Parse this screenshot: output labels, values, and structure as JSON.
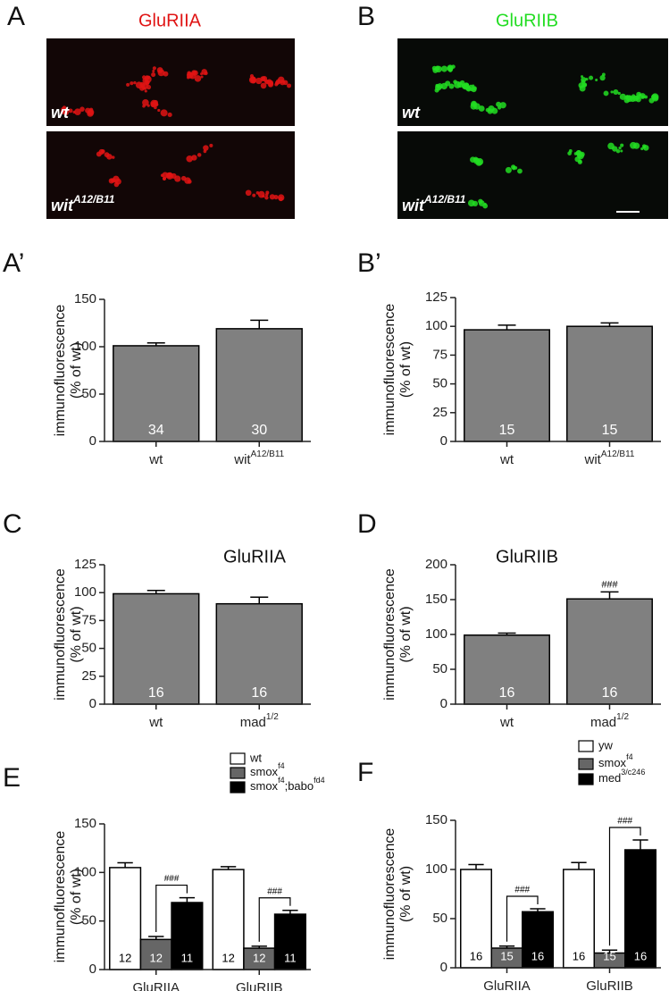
{
  "panels": [
    {
      "letter": "A",
      "title": "GluRIIA",
      "color": "#e01414",
      "rows": [
        "wt",
        [
          "wit",
          "A12/B11"
        ]
      ]
    },
    {
      "letter": "B",
      "title": "GluRIIB",
      "color": "#22dd22",
      "rows": [
        "wt",
        [
          "wit",
          "A12/B11"
        ]
      ]
    }
  ],
  "chart_data": [
    {
      "type": "bar",
      "letter": "A’",
      "ylabel": [
        "immunofluorescence",
        "(% of wt)"
      ],
      "categories": [
        "wt",
        [
          "wit",
          "A12/B11"
        ]
      ],
      "values": [
        101,
        119
      ],
      "errors": [
        3,
        9
      ],
      "n": [
        34,
        30
      ],
      "color": "#808080",
      "ylim": [
        0,
        150
      ],
      "yticks": [
        0,
        50,
        100,
        150
      ]
    },
    {
      "type": "bar",
      "letter": "B’",
      "ylabel": [
        "immunofluorescence",
        "(% of wt)"
      ],
      "categories": [
        "wt",
        [
          "wit",
          "A12/B11"
        ]
      ],
      "values": [
        97,
        100
      ],
      "errors": [
        4,
        3
      ],
      "n": [
        15,
        15
      ],
      "color": "#808080",
      "ylim": [
        0,
        125
      ],
      "yticks": [
        0,
        25,
        50,
        75,
        100,
        125
      ]
    },
    {
      "type": "bar",
      "letter": "C",
      "title": "GluRIIA",
      "ylabel": [
        "immunofluorescence",
        "(% of wt)"
      ],
      "categories": [
        "wt",
        [
          "mad",
          "1/2"
        ]
      ],
      "values": [
        99,
        90
      ],
      "errors": [
        3,
        6
      ],
      "n": [
        16,
        16
      ],
      "color": "#808080",
      "ylim": [
        0,
        125
      ],
      "yticks": [
        0,
        25,
        50,
        75,
        100,
        125
      ]
    },
    {
      "type": "bar",
      "letter": "D",
      "title": "GluRIIB",
      "ylabel": [
        "immunofluorescence",
        "(% of wt)"
      ],
      "categories": [
        "wt",
        [
          "mad",
          "1/2"
        ]
      ],
      "values": [
        99,
        151
      ],
      "errors": [
        3,
        10
      ],
      "n": [
        16,
        16
      ],
      "significance": [
        null,
        "###"
      ],
      "color": "#808080",
      "ylim": [
        0,
        200
      ],
      "yticks": [
        0,
        50,
        100,
        150,
        200
      ]
    },
    {
      "type": "grouped_bar",
      "letter": "E",
      "ylabel": [
        "immunofluorescence",
        "(% of wt)"
      ],
      "categories": [
        "GluRIIA",
        "GluRIIB"
      ],
      "series": [
        {
          "name": "wt",
          "color": "#ffffff",
          "values": [
            105,
            103
          ],
          "errors": [
            5,
            3
          ],
          "n": [
            12,
            12
          ]
        },
        {
          "name": [
            "smox",
            "f4"
          ],
          "color": "#666666",
          "values": [
            31,
            22
          ],
          "errors": [
            3,
            2
          ],
          "n": [
            12,
            12
          ]
        },
        {
          "name": [
            "smox",
            "f4",
            ";babo",
            "fd4"
          ],
          "color": "#000000",
          "values": [
            69,
            57
          ],
          "errors": [
            5,
            4
          ],
          "n": [
            11,
            11
          ]
        }
      ],
      "significance": [
        "###",
        "###"
      ],
      "ylim": [
        0,
        150
      ],
      "yticks": [
        0,
        50,
        100,
        150
      ]
    },
    {
      "type": "grouped_bar",
      "letter": "F",
      "ylabel": [
        "immunofluorescence",
        "(% of wt)"
      ],
      "categories": [
        "GluRIIA",
        "GluRIIB"
      ],
      "series": [
        {
          "name": "yw",
          "color": "#ffffff",
          "values": [
            100,
            100
          ],
          "errors": [
            5,
            7
          ],
          "n": [
            16,
            16
          ]
        },
        {
          "name": [
            "smox",
            "f4"
          ],
          "color": "#666666",
          "values": [
            20,
            15
          ],
          "errors": [
            2,
            3
          ],
          "n": [
            15,
            15
          ]
        },
        {
          "name": [
            "med",
            "3/c246"
          ],
          "color": "#000000",
          "values": [
            57,
            120
          ],
          "errors": [
            3,
            10
          ],
          "n": [
            16,
            16
          ]
        }
      ],
      "significance": [
        "###",
        "###"
      ],
      "ylim": [
        0,
        150
      ],
      "yticks": [
        0,
        50,
        100,
        150
      ]
    }
  ]
}
